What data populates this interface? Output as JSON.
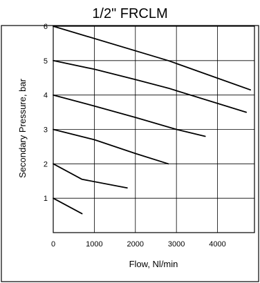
{
  "chart_data": {
    "type": "line",
    "title": "1/2\" FRCLM",
    "xlabel": "Flow, Nl/min",
    "ylabel": "Secondary Pressure, bar",
    "xlim": [
      0,
      4900
    ],
    "ylim": [
      0,
      6
    ],
    "x_ticks": [
      "0",
      "1000",
      "2000",
      "3000",
      "4000"
    ],
    "y_ticks": [
      "1",
      "2",
      "3",
      "4",
      "5",
      "6"
    ],
    "grid": true,
    "series": [
      {
        "x": [
          0,
          2800,
          4800
        ],
        "values": [
          6,
          5,
          4.15
        ]
      },
      {
        "x": [
          0,
          1000,
          2000,
          2800,
          4700
        ],
        "values": [
          5,
          4.75,
          4.45,
          4.2,
          3.5
        ]
      },
      {
        "x": [
          0,
          1000,
          2000,
          3000,
          3700
        ],
        "values": [
          4,
          3.68,
          3.35,
          3.0,
          2.8
        ]
      },
      {
        "x": [
          0,
          1000,
          2000,
          2800
        ],
        "values": [
          3,
          2.7,
          2.3,
          2.0
        ]
      },
      {
        "x": [
          0,
          700,
          1800
        ],
        "values": [
          2,
          1.55,
          1.3
        ]
      },
      {
        "x": [
          0,
          700
        ],
        "values": [
          1,
          0.55
        ]
      }
    ]
  }
}
